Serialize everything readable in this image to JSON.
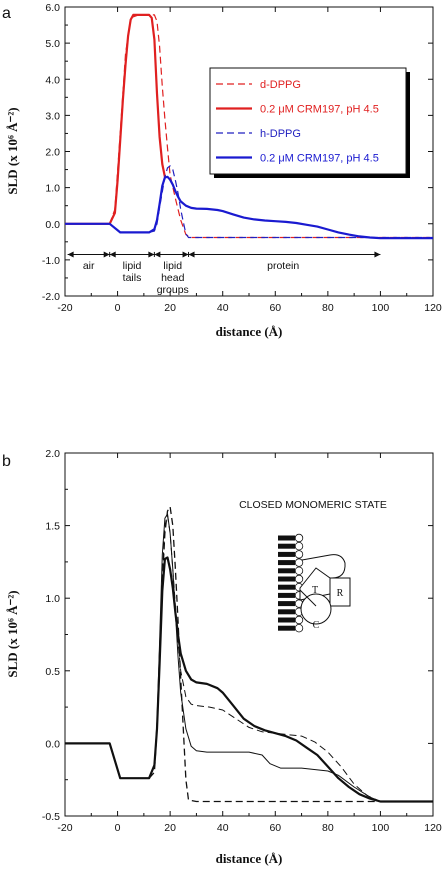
{
  "chart_data": [
    {
      "panel_label": "a",
      "type": "line",
      "xlabel": "distance  (Å)",
      "ylabel": "SLD  (x 10⁶ Å⁻²)",
      "xlim": [
        -20,
        120
      ],
      "ylim": [
        -2.0,
        6.0
      ],
      "xticks": [
        -20,
        0,
        20,
        40,
        60,
        80,
        100,
        120
      ],
      "yticks": [
        -2.0,
        -1.0,
        0.0,
        1.0,
        2.0,
        3.0,
        4.0,
        5.0,
        6.0
      ],
      "xtick_labels": [
        "-20",
        "0",
        "20",
        "40",
        "60",
        "80",
        "100",
        "120"
      ],
      "ytick_labels": [
        "-2.0",
        "-1.0",
        "0.0",
        "1.0",
        "2.0",
        "3.0",
        "4.0",
        "5.0",
        "6.0"
      ],
      "grid": false,
      "legend_position": "right",
      "series": [
        {
          "name": "d-DPPG",
          "color": "#e02020",
          "dash": "dashed",
          "width": 1.2,
          "x": [
            -20,
            -3,
            -1,
            1,
            3,
            5,
            8,
            10,
            14,
            15,
            16,
            17,
            18,
            19,
            20,
            22,
            24,
            26,
            28,
            30,
            60,
            100,
            120
          ],
          "y": [
            0,
            0,
            0.4,
            2.5,
            4.7,
            5.7,
            5.78,
            5.78,
            5.78,
            5.6,
            4.9,
            3.8,
            2.9,
            2.1,
            1.35,
            0.7,
            0.1,
            -0.3,
            -0.38,
            -0.38,
            -0.38,
            -0.38,
            -0.38
          ]
        },
        {
          "name": "0.2 μM CRM197,  pH 4.5",
          "color": "#e02020",
          "dash": "solid",
          "width": 2.2,
          "x": [
            -20,
            -3,
            -1,
            0,
            1,
            2,
            3,
            4,
            5,
            6,
            12,
            13,
            14,
            15,
            16,
            17,
            18
          ],
          "y": [
            0,
            0,
            0.3,
            1.2,
            2.3,
            3.4,
            4.4,
            5.2,
            5.65,
            5.78,
            5.78,
            5.7,
            5.1,
            3.6,
            2.4,
            1.65,
            1.3
          ]
        },
        {
          "name": "h-DPPG",
          "color": "#2020c0",
          "dash": "dashed",
          "width": 1.2,
          "x": [
            -20,
            -3,
            1,
            10,
            12,
            14,
            15,
            16,
            18,
            19,
            20,
            21,
            22,
            23,
            24,
            25,
            26,
            27,
            30,
            60,
            100,
            120
          ],
          "y": [
            0,
            0,
            -0.24,
            -0.24,
            -0.24,
            -0.2,
            0,
            0.45,
            1.3,
            1.55,
            1.6,
            1.5,
            1.2,
            0.85,
            0.4,
            0.05,
            -0.28,
            -0.38,
            -0.38,
            -0.38,
            -0.38,
            -0.38
          ]
        },
        {
          "name": "0.2 μM CRM197,  pH 4.5",
          "color": "#1a1ad0",
          "dash": "solid",
          "width": 2.2,
          "x": [
            -20,
            -3,
            1,
            10,
            12,
            14,
            15,
            16,
            17,
            18,
            19,
            20,
            21,
            22,
            23,
            24,
            26,
            28,
            30,
            34,
            38,
            40,
            44,
            48,
            52,
            56,
            60,
            64,
            68,
            72,
            76,
            80,
            84,
            88,
            92,
            96,
            100,
            110,
            120
          ],
          "y": [
            0,
            0,
            -0.24,
            -0.24,
            -0.24,
            -0.15,
            0.1,
            0.55,
            1.05,
            1.28,
            1.3,
            1.22,
            1.08,
            0.9,
            0.75,
            0.62,
            0.5,
            0.44,
            0.42,
            0.41,
            0.38,
            0.35,
            0.26,
            0.17,
            0.12,
            0.09,
            0.07,
            0.05,
            0.02,
            -0.03,
            -0.08,
            -0.16,
            -0.24,
            -0.3,
            -0.35,
            -0.38,
            -0.4,
            -0.4,
            -0.4
          ]
        }
      ],
      "annotations": [
        {
          "text_lines": [
            "air"
          ],
          "x": -11,
          "y": -1.25
        },
        {
          "text_lines": [
            "lipid",
            "tails"
          ],
          "x": 5.5,
          "y": -1.25
        },
        {
          "text_lines": [
            "lipid",
            "head",
            "groups"
          ],
          "x": 21,
          "y": -1.25
        },
        {
          "text_lines": [
            "protein"
          ],
          "x": 63,
          "y": -1.25
        }
      ],
      "region_arrows": [
        {
          "from": -19,
          "to": -3,
          "y": -0.85
        },
        {
          "from": -3,
          "to": 14,
          "y": -0.85
        },
        {
          "from": 14,
          "to": 27,
          "y": -0.85
        },
        {
          "from": 27,
          "to": 100,
          "y": -0.85
        }
      ]
    },
    {
      "panel_label": "b",
      "type": "line",
      "xlabel": "distance  (Å)",
      "ylabel": "SLD  (x 10⁶  Å⁻²)",
      "xlim": [
        -20,
        120
      ],
      "ylim": [
        -0.5,
        2.0
      ],
      "xticks": [
        -20,
        0,
        20,
        40,
        60,
        80,
        100,
        120
      ],
      "yticks": [
        -0.5,
        0.0,
        0.5,
        1.0,
        1.5,
        2.0
      ],
      "xtick_labels": [
        "-20",
        "0",
        "20",
        "40",
        "60",
        "80",
        "100",
        "120"
      ],
      "ytick_labels": [
        "-0.5",
        "0.0",
        "0.5",
        "1.0",
        "1.5",
        "2.0"
      ],
      "grid": false,
      "inset_title": "CLOSED MONOMERIC STATE",
      "inset_labels": [
        "T",
        "R",
        "C"
      ],
      "series": [
        {
          "color": "#111111",
          "dash": "dashed",
          "width": 1.3,
          "x": [
            -20,
            -3,
            1,
            10,
            12,
            14,
            15,
            16,
            17,
            18,
            19,
            20,
            21,
            22,
            23,
            24,
            25,
            26,
            27,
            30,
            60,
            100,
            120
          ],
          "y": [
            0,
            0,
            -0.24,
            -0.24,
            -0.24,
            -0.2,
            0.1,
            0.6,
            1.1,
            1.45,
            1.6,
            1.63,
            1.5,
            1.2,
            0.85,
            0.45,
            0.1,
            -0.25,
            -0.39,
            -0.4,
            -0.4,
            -0.4,
            -0.4
          ]
        },
        {
          "color": "#111111",
          "dash": "solid",
          "width": 2.2,
          "x": [
            -20,
            -3,
            1,
            10,
            12,
            14,
            15,
            16,
            17,
            18,
            19,
            20,
            21,
            22,
            23,
            24,
            26,
            28,
            30,
            34,
            38,
            40,
            44,
            48,
            52,
            56,
            60,
            64,
            68,
            72,
            76,
            80,
            84,
            88,
            92,
            96,
            100,
            110,
            120
          ],
          "y": [
            0,
            0,
            -0.24,
            -0.24,
            -0.24,
            -0.15,
            0.1,
            0.55,
            1.05,
            1.27,
            1.28,
            1.2,
            1.07,
            0.9,
            0.75,
            0.62,
            0.5,
            0.44,
            0.42,
            0.41,
            0.38,
            0.35,
            0.26,
            0.17,
            0.12,
            0.09,
            0.07,
            0.05,
            0.02,
            -0.03,
            -0.08,
            -0.16,
            -0.24,
            -0.3,
            -0.35,
            -0.38,
            -0.4,
            -0.4,
            -0.4
          ]
        },
        {
          "color": "#111111",
          "dash": "solid",
          "width": 1.0,
          "x": [
            -20,
            -3,
            1,
            10,
            12,
            14,
            15,
            16,
            17,
            18,
            19,
            20,
            21,
            22,
            23,
            24,
            26,
            28,
            30,
            34,
            40,
            50,
            55,
            58,
            62,
            70,
            80,
            84,
            90,
            96,
            100,
            110,
            120
          ],
          "y": [
            0,
            0,
            -0.24,
            -0.24,
            -0.24,
            -0.15,
            0.15,
            0.7,
            1.3,
            1.55,
            1.58,
            1.45,
            1.2,
            0.9,
            0.6,
            0.35,
            0.1,
            -0.02,
            -0.05,
            -0.06,
            -0.06,
            -0.06,
            -0.08,
            -0.14,
            -0.17,
            -0.17,
            -0.19,
            -0.22,
            -0.3,
            -0.37,
            -0.4,
            -0.4,
            -0.4
          ]
        },
        {
          "color": "#111111",
          "dash": "dashed",
          "width": 1.0,
          "x": [
            -20,
            -3,
            1,
            10,
            12,
            14,
            15,
            16,
            17,
            18,
            19,
            20,
            21,
            22,
            23,
            24,
            26,
            28,
            30,
            35,
            40,
            45,
            50,
            55,
            60,
            65,
            70,
            75,
            80,
            85,
            90,
            95,
            100,
            110,
            120
          ],
          "y": [
            0,
            0,
            -0.24,
            -0.24,
            -0.24,
            -0.15,
            0.12,
            0.65,
            1.15,
            1.5,
            1.57,
            1.45,
            1.2,
            0.95,
            0.7,
            0.5,
            0.32,
            0.27,
            0.26,
            0.25,
            0.23,
            0.17,
            0.11,
            0.08,
            0.07,
            0.06,
            0.05,
            0.01,
            -0.06,
            -0.16,
            -0.28,
            -0.36,
            -0.4,
            -0.4,
            -0.4
          ]
        }
      ]
    }
  ]
}
